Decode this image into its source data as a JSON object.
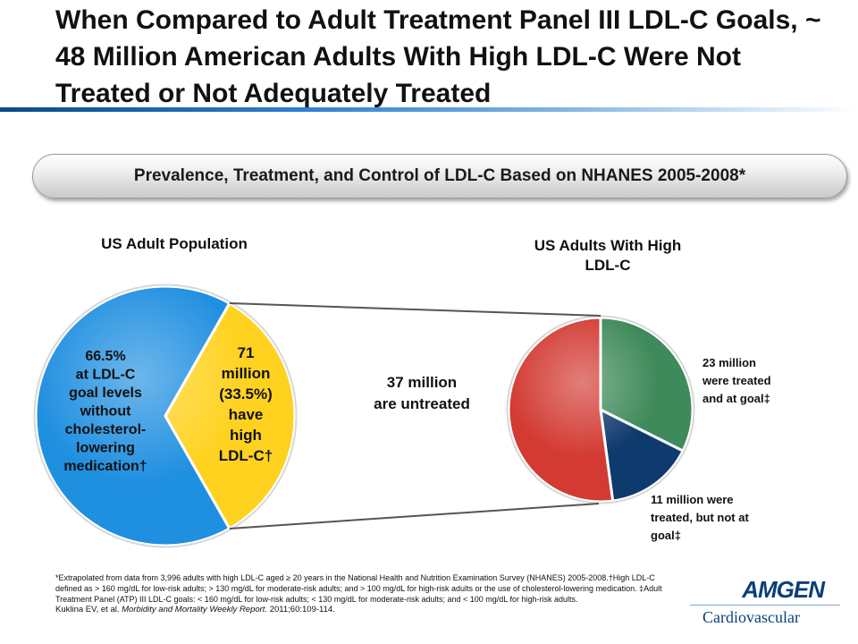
{
  "title": "When Compared to Adult Treatment Panel III LDL-C Goals, ~ 48 Million American Adults With High LDL-C Were Not Treated or Not Adequately Treated",
  "banner": "Prevalence, Treatment, and Control of LDL-C Based on NHANES 2005-2008*",
  "chart_data": [
    {
      "type": "pie",
      "title": "US Adult Population",
      "series": [
        {
          "name": "66.5% at LDL-C goal levels without cholesterol-lowering medication†",
          "value": 66.5,
          "color": "#1f8fe0"
        },
        {
          "name": "71 million (33.5%) have high LDL-C†",
          "value": 33.5,
          "color": "#ffd21f"
        }
      ]
    },
    {
      "type": "pie",
      "title": "US Adults With High LDL-C",
      "series": [
        {
          "name": "23 million were treated and at goal‡",
          "value": 23,
          "color": "#3f8a5a"
        },
        {
          "name": "11 million were treated, but not at goal‡",
          "value": 11,
          "color": "#0f3a6e"
        },
        {
          "name": "37 million are untreated",
          "value": 37,
          "color": "#d23a32"
        }
      ]
    }
  ],
  "labels": {
    "left_blue": [
      "66.5%",
      "at LDL-C",
      "goal levels",
      "without",
      "cholesterol-",
      "lowering",
      "medication†"
    ],
    "left_yellow": [
      "71",
      "million",
      "(33.5%)",
      "have",
      "high",
      "LDL-C†"
    ],
    "untreated": [
      "37 million",
      "are untreated"
    ],
    "treated_goal": [
      "23 million",
      "were treated",
      "and at goal‡"
    ],
    "treated_not_goal": [
      "11 million were",
      "treated, but not at",
      "goal‡"
    ],
    "left_title": "US Adult Population",
    "right_title_1": "US Adults With High",
    "right_title_2": "LDL-C"
  },
  "footnote": {
    "body": "*Extrapolated from data from 3,996 adults with high LDL-C aged ≥ 20 years in the National Health and Nutrition Examination Survey (NHANES) 2005-2008.†High LDL-C defined as > 160 mg/dL for low-risk adults; > 130 mg/dL for moderate-risk adults; and > 100 mg/dL for high-risk adults or the use of cholesterol-lowering medication. ‡Adult Treatment Panel (ATP) III LDL-C goals: < 160 mg/dL for low-risk adults; < 130 mg/dL for moderate-risk adults; and < 100 mg/dL for high-risk adults.",
    "ref_authors": "Kuklina EV, et al. ",
    "ref_journal": "Morbidity and Mortality Weekly Report.",
    "ref_rest": " 2011;60:109-114."
  },
  "logo": {
    "brand": "AMGEN",
    "division": "Cardiovascular"
  }
}
